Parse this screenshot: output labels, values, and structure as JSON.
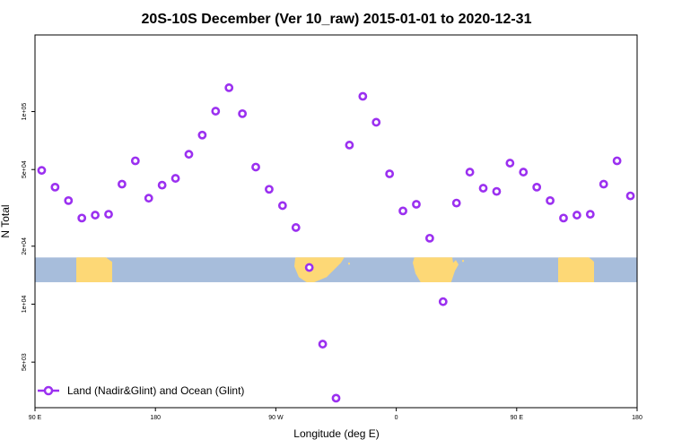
{
  "chart_data": {
    "type": "scatter",
    "title": "20S-10S December (Ver 10_raw)   2015-01-01 to 2020-12-31",
    "xlabel": "Longitude (deg E)",
    "ylabel": "N Total",
    "y_scale": "log",
    "xlim": [
      90,
      540
    ],
    "ylim": [
      2900,
      250000
    ],
    "x_ticks": [
      {
        "value": 90,
        "label": "90 E"
      },
      {
        "value": 180,
        "label": "180"
      },
      {
        "value": 270,
        "label": "90 W"
      },
      {
        "value": 360,
        "label": "0"
      },
      {
        "value": 450,
        "label": "90 E"
      },
      {
        "value": 540,
        "label": "180"
      }
    ],
    "y_ticks": [
      {
        "value": 5000,
        "label": "5e+03"
      },
      {
        "value": 10000,
        "label": "1e+04"
      },
      {
        "value": 20000,
        "label": "2e+04"
      },
      {
        "value": 50000,
        "label": "5e+04"
      },
      {
        "value": 100000,
        "label": "1e+05"
      }
    ],
    "map_strip": {
      "ocean_color": "#a7bddb",
      "land_color": "#fdd876",
      "y_range": [
        13000,
        17500
      ]
    },
    "legend": {
      "position": "bottom-left"
    },
    "series": [
      {
        "name": "Land (Nadir&Glint) and Ocean (Glint)",
        "color": "#9b30f0",
        "marker": "open-circle",
        "x": [
          95,
          105,
          115,
          125,
          135,
          145,
          155,
          165,
          175,
          185,
          195,
          205,
          215,
          225,
          235,
          245,
          255,
          265,
          275,
          285,
          295,
          305,
          315,
          325,
          335,
          345,
          355,
          365,
          375,
          385,
          395,
          405,
          415,
          425,
          435,
          445,
          455,
          465,
          475,
          485,
          495,
          505,
          515,
          525,
          535
        ],
        "y": [
          49500,
          40500,
          34500,
          28000,
          29000,
          29300,
          42000,
          55500,
          35500,
          41500,
          45000,
          60000,
          75500,
          100500,
          133000,
          97500,
          51500,
          39500,
          32500,
          25000,
          15500,
          6200,
          3250,
          67000,
          120000,
          88000,
          47500,
          30500,
          33000,
          22000,
          10300,
          33500,
          48500,
          40000,
          38500,
          54000,
          48500,
          40500,
          34500,
          28000,
          29000,
          29300,
          42000,
          55500,
          36500
        ]
      }
    ]
  }
}
